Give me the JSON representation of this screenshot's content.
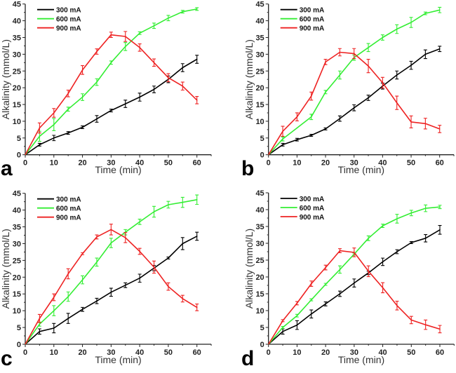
{
  "chart_data": [
    {
      "type": "line",
      "panel_label": "a",
      "xlabel": "Time (min)",
      "ylabel": "Alkalinity (mmol/L)",
      "xlim": [
        0,
        65
      ],
      "ylim": [
        0,
        45
      ],
      "xticks": [
        0,
        10,
        20,
        30,
        40,
        50,
        60
      ],
      "yticks": [
        0,
        5,
        10,
        15,
        20,
        25,
        30,
        35,
        40,
        45
      ],
      "legend_position": "top-left",
      "x": [
        0,
        5,
        10,
        15,
        20,
        25,
        30,
        35,
        40,
        45,
        50,
        55,
        60
      ],
      "series": [
        {
          "name": "300 mA",
          "color": "#000000",
          "values": [
            0,
            3,
            5,
            6.5,
            8.2,
            10.7,
            13.2,
            15.2,
            17.2,
            19.5,
            22.5,
            26,
            28.5
          ],
          "errors": [
            0,
            0.4,
            0.8,
            0.4,
            0.4,
            1,
            0.4,
            1.1,
            1.2,
            1,
            1,
            1.2,
            1.2
          ]
        },
        {
          "name": "600 mA",
          "color": "#33ee33",
          "values": [
            0,
            5.5,
            9,
            13.6,
            17.2,
            21.7,
            27.5,
            32.3,
            36.3,
            38.5,
            40.8,
            42.7,
            43.5
          ],
          "errors": [
            0,
            1.5,
            1.8,
            0.6,
            1,
            1,
            0.5,
            1.2,
            0.4,
            0.8,
            0.8,
            0.4,
            0.4
          ]
        },
        {
          "name": "900 mA",
          "color": "#ee2222",
          "values": [
            0,
            8,
            12.5,
            18.3,
            25.3,
            30.8,
            35.8,
            35.3,
            32,
            27.5,
            23,
            20.5,
            16.3
          ],
          "errors": [
            0,
            1.5,
            1.3,
            1,
            1.3,
            0.8,
            0.8,
            1.5,
            1.1,
            1.1,
            1.2,
            1.2,
            1.1
          ]
        }
      ]
    },
    {
      "type": "line",
      "panel_label": "b",
      "xlabel": "Time (min)",
      "ylabel": "Alkalinity (mmol/L)",
      "xlim": [
        0,
        65
      ],
      "ylim": [
        0,
        45
      ],
      "xticks": [
        0,
        10,
        20,
        30,
        40,
        50,
        60
      ],
      "yticks": [
        0,
        5,
        10,
        15,
        20,
        25,
        30,
        35,
        40,
        45
      ],
      "legend_position": "top-left",
      "x": [
        0,
        5,
        10,
        15,
        20,
        25,
        30,
        35,
        40,
        45,
        50,
        55,
        60
      ],
      "series": [
        {
          "name": "300 mA",
          "color": "#000000",
          "values": [
            0,
            3,
            4.5,
            5.8,
            7.7,
            10.8,
            14,
            17,
            20.5,
            23.8,
            26.7,
            30,
            31.6
          ],
          "errors": [
            0,
            0.4,
            0.4,
            0.3,
            0.3,
            0.8,
            0.9,
            0.8,
            0.9,
            1.2,
            1.2,
            1.3,
            0.8
          ]
        },
        {
          "name": "600 mA",
          "color": "#33ee33",
          "values": [
            0,
            4.7,
            8,
            11.3,
            18.7,
            23.8,
            29,
            32,
            35,
            37.5,
            39.5,
            42.2,
            43.2
          ],
          "errors": [
            0,
            0.6,
            0,
            0.8,
            0.5,
            1.2,
            0.8,
            1.2,
            0.8,
            1.3,
            1.5,
            0.4,
            0.8
          ]
        },
        {
          "name": "900 mA",
          "color": "#ee2222",
          "values": [
            0,
            7,
            11.3,
            17.5,
            27.7,
            30.6,
            30.2,
            26.5,
            21.5,
            15.5,
            9.8,
            9.3,
            7.7
          ],
          "errors": [
            0,
            1.5,
            1.2,
            1.2,
            0.8,
            1.1,
            1.5,
            2,
            1.6,
            2,
            1.8,
            1.6,
            1.1
          ]
        }
      ]
    },
    {
      "type": "line",
      "panel_label": "c",
      "xlabel": "Time (min)",
      "ylabel": "Alkalinity (mmol/L)",
      "xlim": [
        0,
        65
      ],
      "ylim": [
        0,
        45
      ],
      "xticks": [
        0,
        10,
        20,
        30,
        40,
        50,
        60
      ],
      "yticks": [
        0,
        5,
        10,
        15,
        20,
        25,
        30,
        35,
        40,
        45
      ],
      "legend_position": "top-left",
      "x": [
        0,
        5,
        10,
        15,
        20,
        25,
        30,
        35,
        40,
        45,
        50,
        55,
        60
      ],
      "series": [
        {
          "name": "300 mA",
          "color": "#000000",
          "values": [
            0,
            3.8,
            4.8,
            7.7,
            10.4,
            12.9,
            15.5,
            17.6,
            19.7,
            22.7,
            25.7,
            30,
            32.2
          ],
          "errors": [
            0,
            0.8,
            1.4,
            1.5,
            0.6,
            0.8,
            1.2,
            0.7,
            1.2,
            0.8,
            0.3,
            1.8,
            1.2
          ]
        },
        {
          "name": "600 mA",
          "color": "#33ee33",
          "values": [
            0,
            6,
            10,
            14.2,
            19.2,
            24.5,
            30.2,
            33.4,
            36.5,
            39.5,
            41.6,
            42.3,
            43.1
          ],
          "errors": [
            0,
            0.6,
            1.5,
            1.4,
            1.2,
            1.2,
            1.4,
            0.8,
            0.8,
            1.6,
            1,
            1.5,
            1.4
          ]
        },
        {
          "name": "900 mA",
          "color": "#ee2222",
          "values": [
            0,
            7.7,
            14,
            21,
            27,
            32,
            34.2,
            31.8,
            27.7,
            23,
            17.2,
            13.6,
            11
          ],
          "errors": [
            0,
            1.2,
            1,
            1.5,
            0.3,
            0.6,
            1.6,
            1.5,
            0.9,
            1.8,
            1.1,
            1,
            1
          ]
        }
      ]
    },
    {
      "type": "line",
      "panel_label": "d",
      "xlabel": "Time (min)",
      "ylabel": "Alkalinity (mmol/L)",
      "xlim": [
        0,
        65
      ],
      "ylim": [
        0,
        45
      ],
      "xticks": [
        0,
        10,
        20,
        30,
        40,
        50,
        60
      ],
      "yticks": [
        0,
        5,
        10,
        15,
        20,
        25,
        30,
        35,
        40,
        45
      ],
      "legend_position": "top-left",
      "x": [
        0,
        5,
        10,
        15,
        20,
        25,
        30,
        35,
        40,
        45,
        50,
        55,
        60
      ],
      "series": [
        {
          "name": "300 mA",
          "color": "#000000",
          "values": [
            0,
            3.8,
            5.7,
            9,
            12,
            15,
            18.2,
            21.2,
            24.5,
            27.5,
            30.2,
            31.5,
            34
          ],
          "errors": [
            0,
            0.8,
            1.3,
            1.2,
            0.6,
            0.8,
            1.2,
            0.5,
            1.1,
            0.6,
            0.3,
            1.1,
            1.3
          ]
        },
        {
          "name": "600 mA",
          "color": "#33ee33",
          "values": [
            0,
            5,
            8.5,
            13.2,
            17.8,
            22.2,
            26.8,
            31.5,
            35.2,
            37.3,
            39,
            40.4,
            40.8
          ],
          "errors": [
            0,
            0.3,
            0.4,
            0.3,
            0.3,
            1.1,
            0.3,
            0.7,
            0.5,
            1.3,
            0.8,
            1,
            0.5
          ]
        },
        {
          "name": "900 mA",
          "color": "#ee2222",
          "values": [
            0,
            7,
            12.2,
            18,
            22.8,
            27.8,
            27.3,
            21.7,
            16.8,
            11.5,
            7.2,
            5.8,
            4.5
          ],
          "errors": [
            0,
            0.3,
            0.5,
            0.8,
            0.7,
            0.6,
            1.3,
            1.6,
            1.5,
            1.3,
            1.1,
            1.4,
            1.1
          ]
        }
      ]
    }
  ]
}
